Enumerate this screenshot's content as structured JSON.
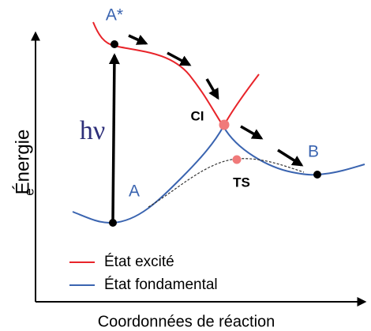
{
  "diagram": {
    "y_axis_label": "Énergie",
    "y_axis_sublabel": "e",
    "x_axis_label": "Coordonnées de réaction",
    "points": {
      "excited_start": "A*",
      "start": "A",
      "end": "B",
      "conical_intersection": "CI",
      "transition_state": "TS"
    },
    "photon": "hν",
    "legend": [
      {
        "name": "État excité",
        "color": "#e8242a"
      },
      {
        "name": "État fondamental",
        "color": "#3a64b0"
      }
    ]
  }
}
